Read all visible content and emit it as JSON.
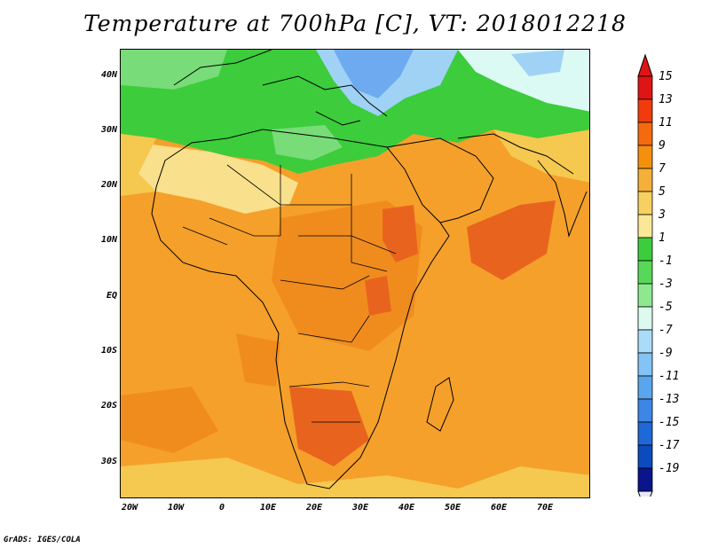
{
  "title": "Temperature at 700hPa [C], VT: 2018012218",
  "credit": "GrADS: IGES/COLA",
  "lat_labels": [
    "40N",
    "30N",
    "20N",
    "10N",
    "EQ",
    "10S",
    "20S",
    "30S"
  ],
  "lon_labels": [
    "20W",
    "10W",
    "0",
    "10E",
    "20E",
    "30E",
    "40E",
    "50E",
    "60E",
    "70E"
  ],
  "colorbar": {
    "labels": [
      "15",
      "13",
      "11",
      "9",
      "7",
      "5",
      "3",
      "1",
      "-1",
      "-3",
      "-5",
      "-7",
      "-9",
      "-11",
      "-13",
      "-15",
      "-17",
      "-19"
    ],
    "colors": [
      "#e01414",
      "#f03c0c",
      "#f56a0f",
      "#f5900f",
      "#f5b03a",
      "#f8d060",
      "#fae896",
      "#3ccc3c",
      "#58d858",
      "#8ee88e",
      "#dcfaf0",
      "#aadcfa",
      "#82c4f5",
      "#5aa6ee",
      "#3c87e6",
      "#1e69d7",
      "#0a4bbe",
      "#0a148c"
    ],
    "top_color": "#e01414",
    "bottom_color": "#e8e8f8"
  },
  "map_colors": {
    "warm_orange": "#f5a02a",
    "orange": "#f08c1e",
    "deep_orange": "#e8641e",
    "pale_yellow": "#f8e08c",
    "yellow": "#f5c850",
    "green": "#3ccc3c",
    "light_green": "#78dc78",
    "pale_green": "#c0f0c0",
    "light_blue": "#a0d2f5",
    "blue": "#6eaaf0",
    "pale_cyan": "#dcfaf4"
  }
}
